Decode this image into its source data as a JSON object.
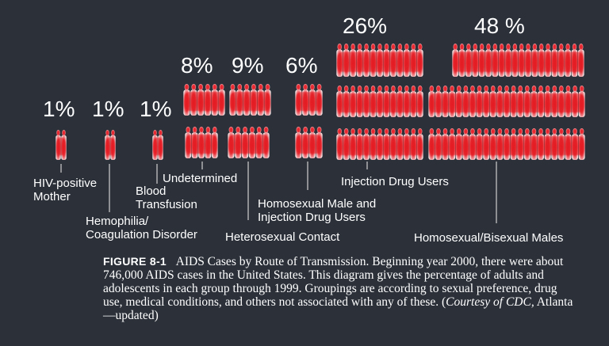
{
  "colors": {
    "background": "#2b3039",
    "figure_core": "#e8202a",
    "figure_edge": "#f4f1f1",
    "text": "#ffffff",
    "leader_line": "#cfcfcf"
  },
  "chart_data": {
    "type": "bar",
    "representation": "pictograph of human figure silhouettes",
    "categories": [
      "HIV-positive Mother",
      "Hemophilia/ Coagulation Disorder",
      "Blood Transfusion",
      "Undetermined",
      "Heterosexual Contact",
      "Homosexual Male and Injection Drug Users",
      "Injection Drug Users",
      "Homosexual/Bisexual Males"
    ],
    "values": [
      1,
      1,
      1,
      8,
      9,
      6,
      26,
      48
    ],
    "value_labels": [
      "1%",
      "1%",
      "1%",
      "8%",
      "9%",
      "6%",
      "26%",
      "48 %"
    ],
    "label_lines": [
      [
        "HIV-positive",
        "Mother"
      ],
      [
        "Hemophilia/",
        "Coagulation Disorder"
      ],
      [
        "Blood",
        "Transfusion"
      ],
      [
        "Undetermined"
      ],
      [
        "Heterosexual Contact"
      ],
      [
        "Homosexual Male and",
        "Injection Drug Users"
      ],
      [
        "Injection Drug Users"
      ],
      [
        "Homosexual/Bisexual Males"
      ]
    ],
    "unit": "%"
  },
  "caption": {
    "figure_label": "FIGURE 8-1",
    "text": "AIDS Cases by Route of Transmission. Beginning year 2000, there were about 746,000 AIDS cases in the United States. This diagram gives the percentage of adults and adolescents in each group through 1999. Groupings are according to sexual preference, drug use, medical conditions, and others not associated with any of these. (",
    "credit": "Courtesy of CDC,",
    "text_end": " Atlanta—updated)"
  }
}
